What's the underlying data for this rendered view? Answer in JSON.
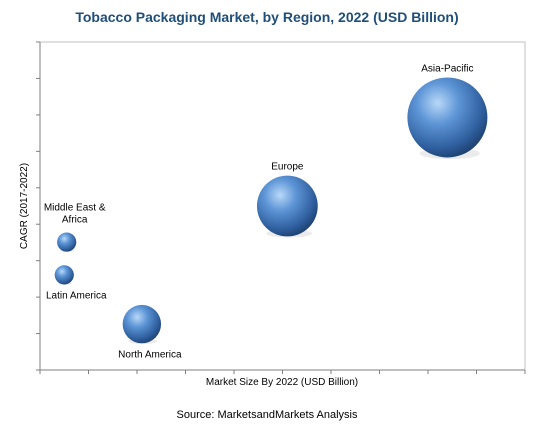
{
  "chart_data": {
    "type": "scatter",
    "title": "Tobacco Packaging Market, by Region, 2022 (USD Billion)",
    "xlabel": "Market Size By 2022 (USD Billion)",
    "ylabel": "CAGR (2017-2022)",
    "xlim": [
      0,
      10
    ],
    "ylim": [
      0,
      10
    ],
    "grid": false,
    "legend": "none",
    "bubble_color": "#3a6fb5",
    "series": [
      {
        "points": [
          {
            "label": "Asia-Pacific",
            "x": 8.4,
            "y": 7.7,
            "size": 1.0
          },
          {
            "label": "Europe",
            "x": 5.1,
            "y": 5.0,
            "size": 0.76
          },
          {
            "label": "Middle East & Africa",
            "x": 0.55,
            "y": 3.9,
            "size": 0.24
          },
          {
            "label": "Latin America",
            "x": 0.5,
            "y": 2.9,
            "size": 0.24
          },
          {
            "label": "North America",
            "x": 2.1,
            "y": 1.4,
            "size": 0.48
          }
        ]
      }
    ],
    "source": "Source: MarketsandMarkets Analysis"
  }
}
